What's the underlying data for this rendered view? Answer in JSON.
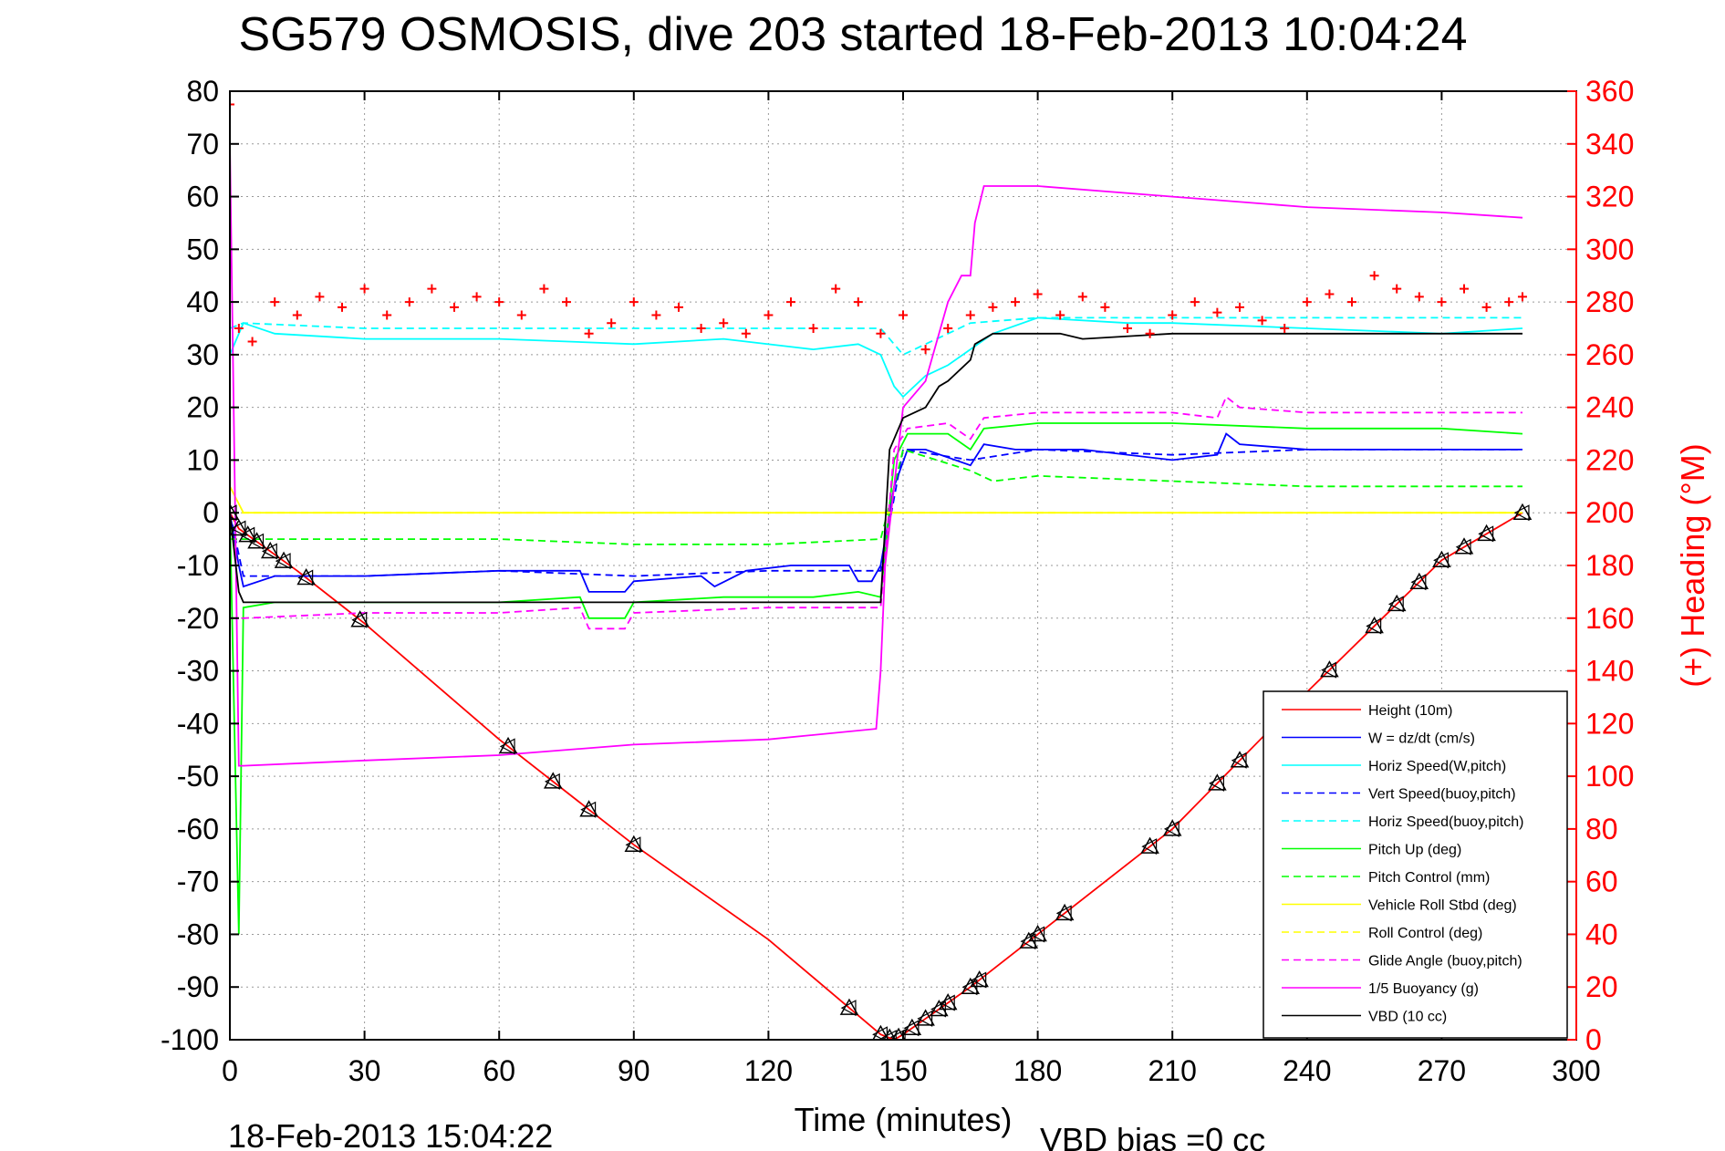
{
  "chart_data": {
    "type": "line",
    "title": "SG579 OSMOSIS, dive 203 started 18-Feb-2013 10:04:24",
    "xlabel": "Time (minutes)",
    "ylabel": "",
    "y2label": "(+) Heading (°M)",
    "xlim": [
      0,
      300
    ],
    "ylim": [
      -100,
      80
    ],
    "y2lim": [
      0,
      360
    ],
    "xticks": [
      "0",
      "30",
      "60",
      "90",
      "120",
      "150",
      "180",
      "210",
      "240",
      "270",
      "300"
    ],
    "yticks": [
      "80",
      "70",
      "60",
      "50",
      "40",
      "30",
      "20",
      "10",
      "0",
      "-10",
      "-20",
      "-30",
      "-40",
      "-50",
      "-60",
      "-70",
      "-80",
      "-90",
      "-100"
    ],
    "y2ticks": [
      "360",
      "340",
      "320",
      "300",
      "280",
      "260",
      "240",
      "220",
      "200",
      "180",
      "160",
      "140",
      "120",
      "100",
      "80",
      "60",
      "40",
      "20",
      "0"
    ],
    "grid": true,
    "legend_position": "lower-right",
    "footer_left": "18-Feb-2013 15:04:22",
    "footer_right": "VBD bias =0 cc",
    "colors": {
      "red": "#ff0000",
      "blue": "#0000ff",
      "cyan": "#00ffff",
      "green": "#00ff00",
      "yellow": "#ffff00",
      "magenta": "#ff00ff",
      "black": "#000000"
    },
    "series": [
      {
        "name": "Height (10m)",
        "color": "#ff0000",
        "style": "solid",
        "x": [
          0,
          2,
          15,
          30,
          60,
          90,
          120,
          145,
          148,
          150,
          165,
          180,
          210,
          240,
          270,
          288
        ],
        "y": [
          0,
          -3,
          -11,
          -21,
          -43,
          -63,
          -81,
          -99,
          -100,
          -99,
          -90,
          -80,
          -60,
          -34,
          -9,
          0
        ]
      },
      {
        "name": "W = dz/dt (cm/s)",
        "color": "#0000ff",
        "style": "solid",
        "x": [
          0,
          2,
          3,
          10,
          30,
          60,
          78,
          80,
          88,
          90,
          105,
          108,
          115,
          125,
          138,
          140,
          143,
          145,
          148,
          151,
          155,
          165,
          168,
          175,
          180,
          190,
          210,
          220,
          222,
          225,
          240,
          270,
          288
        ],
        "y": [
          0,
          -10,
          -14,
          -12,
          -12,
          -11,
          -11,
          -15,
          -15,
          -13,
          -12,
          -14,
          -11,
          -10,
          -10,
          -13,
          -13,
          -10,
          5,
          12,
          12,
          9,
          13,
          12,
          12,
          12,
          10,
          11,
          15,
          13,
          12,
          12,
          12
        ]
      },
      {
        "name": "Horiz Speed(W,pitch)",
        "color": "#00ffff",
        "style": "solid",
        "x": [
          0,
          3,
          10,
          30,
          60,
          90,
          110,
          130,
          140,
          145,
          148,
          150,
          155,
          160,
          170,
          180,
          200,
          210,
          240,
          270,
          288
        ],
        "y": [
          30,
          36,
          34,
          33,
          33,
          32,
          33,
          31,
          32,
          30,
          24,
          22,
          26,
          28,
          34,
          37,
          36,
          36,
          35,
          34,
          35
        ]
      },
      {
        "name": "Vert Speed(buoy,pitch)",
        "color": "#0000ff",
        "style": "dashed",
        "x": [
          0,
          3,
          30,
          60,
          90,
          120,
          145,
          150,
          165,
          180,
          210,
          240,
          270,
          288
        ],
        "y": [
          0,
          -12,
          -12,
          -11,
          -12,
          -11,
          -11,
          12,
          10,
          12,
          11,
          12,
          12,
          12
        ]
      },
      {
        "name": "Horiz Speed(buoy,pitch)",
        "color": "#00ffff",
        "style": "dashed",
        "x": [
          0,
          3,
          30,
          60,
          90,
          120,
          145,
          150,
          165,
          180,
          210,
          240,
          270,
          288
        ],
        "y": [
          35,
          36,
          35,
          35,
          35,
          35,
          35,
          30,
          36,
          37,
          37,
          37,
          37,
          37
        ]
      },
      {
        "name": "Pitch Up (deg)",
        "color": "#00ff00",
        "style": "solid",
        "x": [
          0,
          2,
          3,
          10,
          30,
          60,
          78,
          80,
          88,
          90,
          110,
          130,
          140,
          145,
          148,
          151,
          160,
          165,
          168,
          180,
          210,
          240,
          270,
          288
        ],
        "y": [
          0,
          -80,
          -18,
          -17,
          -17,
          -17,
          -16,
          -20,
          -20,
          -17,
          -16,
          -16,
          -15,
          -16,
          10,
          15,
          15,
          12,
          16,
          17,
          17,
          16,
          16,
          15
        ]
      },
      {
        "name": "Pitch Control (mm)",
        "color": "#00ff00",
        "style": "dashed",
        "x": [
          0,
          3,
          30,
          60,
          90,
          120,
          145,
          148,
          150,
          165,
          170,
          180,
          210,
          240,
          270,
          288
        ],
        "y": [
          -5,
          -5,
          -5,
          -5,
          -6,
          -6,
          -5,
          5,
          12,
          8,
          6,
          7,
          6,
          5,
          5,
          5
        ]
      },
      {
        "name": "Vehicle Roll Stbd (deg)",
        "color": "#ffff00",
        "style": "solid",
        "x": [
          0,
          3,
          10,
          30,
          60,
          90,
          120,
          145,
          148,
          150,
          165,
          180,
          210,
          240,
          270,
          288
        ],
        "y": [
          5,
          0,
          0,
          0,
          0,
          0,
          0,
          0,
          0,
          0,
          0,
          0,
          0,
          0,
          0,
          0
        ]
      },
      {
        "name": "Roll Control (deg)",
        "color": "#ffff00",
        "style": "dashed",
        "x": [
          0,
          288
        ],
        "y": [
          0,
          0
        ]
      },
      {
        "name": "Glide Angle (buoy,pitch)",
        "color": "#ff00ff",
        "style": "dashed",
        "x": [
          0,
          3,
          30,
          60,
          78,
          80,
          88,
          90,
          120,
          145,
          148,
          151,
          160,
          165,
          168,
          180,
          210,
          220,
          222,
          225,
          240,
          270,
          288
        ],
        "y": [
          -20,
          -20,
          -19,
          -19,
          -18,
          -22,
          -22,
          -19,
          -18,
          -18,
          12,
          16,
          17,
          14,
          18,
          19,
          19,
          18,
          22,
          20,
          19,
          19,
          19
        ]
      },
      {
        "name": "1/5 Buoyancy (g)",
        "color": "#ff00ff",
        "style": "solid",
        "x": [
          0,
          2,
          3,
          30,
          60,
          90,
          120,
          144,
          145,
          146,
          150,
          155,
          160,
          163,
          165,
          166,
          168,
          180,
          210,
          240,
          270,
          288
        ],
        "y": [
          70,
          -48,
          -48,
          -47,
          -46,
          -44,
          -43,
          -41,
          -30,
          -10,
          20,
          25,
          40,
          45,
          45,
          55,
          62,
          62,
          60,
          58,
          57,
          56
        ]
      },
      {
        "name": "VBD (10 cc)",
        "color": "#000000",
        "style": "solid",
        "x": [
          0,
          2,
          3,
          10,
          145,
          147,
          150,
          155,
          158,
          160,
          165,
          166,
          170,
          185,
          190,
          210,
          240,
          270,
          288
        ],
        "y": [
          0,
          -15,
          -17,
          -17,
          -17,
          12,
          18,
          20,
          24,
          25,
          29,
          32,
          34,
          34,
          33,
          34,
          34,
          34,
          34
        ]
      },
      {
        "name": "(+) Heading",
        "color": "#ff0000",
        "style": "markers",
        "axis": "right",
        "x": [
          0,
          2,
          5,
          10,
          15,
          20,
          25,
          30,
          35,
          40,
          45,
          50,
          55,
          60,
          65,
          70,
          75,
          80,
          85,
          90,
          95,
          100,
          105,
          110,
          115,
          120,
          125,
          130,
          135,
          140,
          145,
          150,
          155,
          160,
          165,
          170,
          175,
          180,
          185,
          190,
          195,
          200,
          205,
          210,
          215,
          220,
          225,
          230,
          235,
          240,
          245,
          250,
          255,
          260,
          265,
          270,
          275,
          280,
          285,
          288
        ],
        "y": [
          355,
          270,
          265,
          280,
          275,
          282,
          278,
          285,
          275,
          280,
          285,
          278,
          282,
          280,
          275,
          285,
          280,
          268,
          272,
          280,
          275,
          278,
          270,
          272,
          268,
          275,
          280,
          270,
          285,
          280,
          268,
          275,
          262,
          270,
          275,
          278,
          280,
          283,
          275,
          282,
          278,
          270,
          268,
          275,
          280,
          276,
          278,
          273,
          270,
          280,
          283,
          280,
          290,
          285,
          282,
          280,
          285,
          278,
          280,
          282
        ]
      }
    ],
    "markers_height": [
      0,
      2,
      4,
      6,
      9,
      12,
      17,
      29,
      62,
      72,
      80,
      90,
      138,
      145,
      147,
      149,
      152,
      155,
      158,
      160,
      165,
      167,
      178,
      180,
      186,
      205,
      210,
      220,
      225,
      245,
      255,
      260,
      265,
      270,
      275,
      280,
      288
    ]
  }
}
